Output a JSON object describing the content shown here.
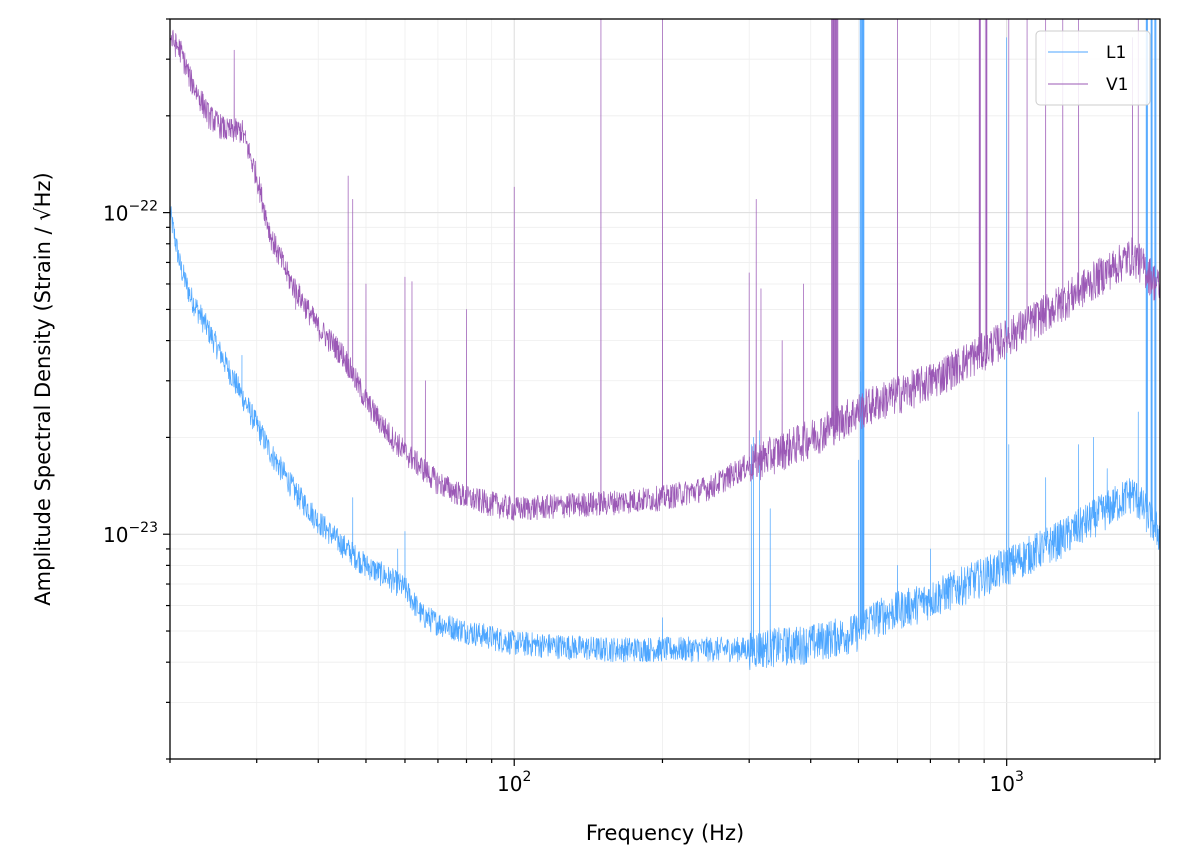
{
  "chart_data": {
    "type": "line",
    "xlabel": "Frequency (Hz)",
    "ylabel": "Amplitude Spectral Density (Strain / √Hz)",
    "x_scale": "log",
    "y_scale": "log",
    "xlim": [
      20,
      2048
    ],
    "ylim": [
      2e-24,
      4e-22
    ],
    "grid": "on (major and minor)",
    "legend_position": "top-right",
    "x_tick_labels": [
      {
        "value": 100,
        "base": "10",
        "exp": "2"
      },
      {
        "value": 1000,
        "base": "10",
        "exp": "3"
      }
    ],
    "y_tick_labels": [
      {
        "value": 1e-23,
        "base": "10",
        "exp": "−23"
      },
      {
        "value": 1e-22,
        "base": "10",
        "exp": "−22"
      }
    ],
    "series": [
      {
        "name": "L1",
        "color": "#4da6ff",
        "baseline": [
          [
            20,
            1e-22
          ],
          [
            21,
            6.8e-23
          ],
          [
            22,
            5.5e-23
          ],
          [
            25,
            3.8e-23
          ],
          [
            28,
            2.7e-23
          ],
          [
            32,
            1.8e-23
          ],
          [
            36,
            1.35e-23
          ],
          [
            40,
            1.1e-23
          ],
          [
            45,
            9.2e-24
          ],
          [
            50,
            8e-24
          ],
          [
            55,
            7.4e-24
          ],
          [
            60,
            6.8e-24
          ],
          [
            65,
            5.6e-24
          ],
          [
            70,
            5.3e-24
          ],
          [
            80,
            5e-24
          ],
          [
            100,
            4.6e-24
          ],
          [
            150,
            4.4e-24
          ],
          [
            200,
            4.4e-24
          ],
          [
            300,
            4.4e-24
          ],
          [
            400,
            4.6e-24
          ],
          [
            500,
            5e-24
          ],
          [
            520,
            5.4e-24
          ],
          [
            700,
            6.3e-24
          ],
          [
            1000,
            8e-24
          ],
          [
            1300,
            9.8e-24
          ],
          [
            1600,
            1.2e-23
          ],
          [
            1800,
            1.35e-23
          ],
          [
            1900,
            1.2e-23
          ],
          [
            2048,
            1e-23
          ]
        ],
        "peaks": [
          [
            28,
            3.6e-23
          ],
          [
            36,
            1.4e-23
          ],
          [
            47,
            1.3e-23
          ],
          [
            58,
            9e-24
          ],
          [
            60,
            1.02e-23
          ],
          [
            200,
            5.5e-24
          ],
          [
            303,
            1.9e-23
          ],
          [
            306,
            2e-23
          ],
          [
            315,
            2.1e-23
          ],
          [
            331,
            1.2e-23
          ],
          [
            500,
            1.7e-23
          ],
          [
            505,
            3.2e-23
          ],
          [
            510,
            4e-22
          ],
          [
            512,
            4e-22
          ],
          [
            600,
            8e-24
          ],
          [
            700,
            9e-24
          ],
          [
            1000,
            3.5e-22
          ],
          [
            1010,
            1.9e-23
          ],
          [
            1200,
            1.5e-23
          ],
          [
            1400,
            1.9e-23
          ],
          [
            1500,
            2e-23
          ],
          [
            1600,
            1.6e-23
          ],
          [
            1850,
            2.4e-23
          ],
          [
            1920,
            4e-22
          ],
          [
            1970,
            4e-22
          ],
          [
            2000,
            4e-22
          ]
        ],
        "filled_peak_bands": [
          [
            503,
            514
          ],
          [
            1918,
            1928
          ],
          [
            1960,
            1975
          ],
          [
            1995,
            2005
          ]
        ]
      },
      {
        "name": "V1",
        "color": "#9b59b6",
        "baseline": [
          [
            20,
            3.5e-22
          ],
          [
            21,
            3.2e-22
          ],
          [
            22,
            2.6e-22
          ],
          [
            24,
            2e-22
          ],
          [
            26,
            1.8e-22
          ],
          [
            28,
            1.8e-22
          ],
          [
            30,
            1.3e-22
          ],
          [
            32,
            8.5e-23
          ],
          [
            35,
            6.2e-23
          ],
          [
            40,
            4.4e-23
          ],
          [
            45,
            3.6e-23
          ],
          [
            50,
            2.6e-23
          ],
          [
            55,
            2.1e-23
          ],
          [
            60,
            1.8e-23
          ],
          [
            70,
            1.45e-23
          ],
          [
            80,
            1.3e-23
          ],
          [
            100,
            1.2e-23
          ],
          [
            150,
            1.25e-23
          ],
          [
            200,
            1.3e-23
          ],
          [
            250,
            1.4e-23
          ],
          [
            300,
            1.65e-23
          ],
          [
            400,
            2e-23
          ],
          [
            470,
            2.3e-23
          ],
          [
            520,
            2.5e-23
          ],
          [
            700,
            3e-23
          ],
          [
            1000,
            4.1e-23
          ],
          [
            1300,
            5.3e-23
          ],
          [
            1600,
            6.6e-23
          ],
          [
            1800,
            7.4e-23
          ],
          [
            1900,
            6.8e-23
          ],
          [
            2048,
            5.8e-23
          ]
        ],
        "peaks": [
          [
            27,
            3.2e-22
          ],
          [
            33,
            7e-23
          ],
          [
            36,
            5e-23
          ],
          [
            46,
            1.3e-22
          ],
          [
            47,
            1.1e-22
          ],
          [
            50,
            6e-23
          ],
          [
            60,
            6.3e-23
          ],
          [
            62,
            6.1e-23
          ],
          [
            66,
            3e-23
          ],
          [
            80,
            5e-23
          ],
          [
            100,
            1.2e-22
          ],
          [
            150,
            4e-22
          ],
          [
            200,
            4e-22
          ],
          [
            300,
            6.5e-23
          ],
          [
            310,
            1.1e-22
          ],
          [
            317,
            5.8e-23
          ],
          [
            350,
            4e-23
          ],
          [
            387,
            6e-23
          ],
          [
            445,
            4e-22
          ],
          [
            450,
            4e-22
          ],
          [
            600,
            4e-22
          ],
          [
            880,
            4e-22
          ],
          [
            910,
            4e-22
          ],
          [
            1010,
            4e-22
          ],
          [
            1100,
            4e-22
          ],
          [
            1200,
            4e-22
          ],
          [
            1300,
            4e-22
          ],
          [
            1400,
            4e-22
          ],
          [
            1800,
            3.5e-22
          ],
          [
            1850,
            4e-22
          ]
        ],
        "filled_peak_bands": [
          [
            440,
            455
          ],
          [
            878,
            885
          ],
          [
            905,
            912
          ]
        ]
      }
    ]
  }
}
